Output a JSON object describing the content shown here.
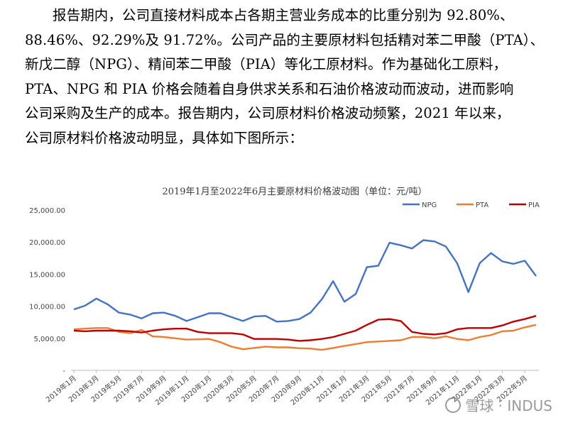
{
  "paragraph": {
    "lines": [
      "报告期内，公司直接材料成本占各期主营业务成本的比重分别为 92.80%、",
      "88.46%、92.29%及 91.72%。公司产品的主要原材料包括精对苯二甲酸（PTA）、",
      "新戊二醇（NPG）、精间苯二甲酸（PIA）等化工原材料。作为基础化工原料，",
      "PTA、NPG 和 PIA 价格会随着自身供求关系和石油价格波动而波动，进而影响",
      "公司采购及生产的成本。报告期内，公司原材料价格波动频繁，2021 年以来，",
      "公司原材料价格波动明显，具体如下图所示："
    ]
  },
  "chart_data": {
    "type": "line",
    "title": "2019年1月至2022年6月主要原材料价格波动图（单位：元/吨）",
    "y_ticks": [
      "25,000.00",
      "20,000.00",
      "15,000.00",
      "10,000.00",
      "5,000.00",
      "-"
    ],
    "ylim": [
      0,
      25000
    ],
    "grid": false,
    "legend_position": "top-right",
    "x_tick_labels": [
      "2019年1月",
      "2019年3月",
      "2019年5月",
      "2019年7月",
      "2019年9月",
      "2019年11月",
      "2020年1月",
      "2020年3月",
      "2020年5月",
      "2020年7月",
      "2020年9月",
      "2020年11月",
      "2021年1月",
      "2021年3月",
      "2021年5月",
      "2021年7月",
      "2021年9月",
      "2021年11月",
      "2022年1月",
      "2022年3月",
      "2022年5月"
    ],
    "x_count": 42,
    "series": [
      {
        "name": "NPG",
        "color": "#4472C4",
        "values": [
          9500,
          10100,
          11200,
          10300,
          9000,
          8700,
          8100,
          8900,
          9000,
          8500,
          7700,
          8300,
          8900,
          8900,
          8300,
          7700,
          8400,
          8500,
          7600,
          7700,
          8000,
          9000,
          11100,
          13900,
          10700,
          11900,
          16100,
          16300,
          19900,
          19500,
          19000,
          20300,
          20100,
          19300,
          16700,
          12200,
          16700,
          18300,
          17000,
          16600,
          17100,
          14700
        ]
      },
      {
        "name": "PTA",
        "color": "#ED7D31",
        "values": [
          6400,
          6500,
          6600,
          6600,
          6000,
          5800,
          6300,
          5300,
          5200,
          5000,
          4800,
          4850,
          4900,
          4400,
          3700,
          3300,
          3500,
          3700,
          3600,
          3600,
          3450,
          3400,
          3200,
          3500,
          3800,
          4100,
          4400,
          4500,
          4600,
          4700,
          5200,
          5200,
          5000,
          5300,
          4900,
          4700,
          5200,
          5500,
          6100,
          6200,
          6700,
          7100
        ]
      },
      {
        "name": "PIA",
        "color": "#C00000",
        "values": [
          6200,
          6100,
          6200,
          6200,
          6200,
          6100,
          5900,
          6200,
          6400,
          6500,
          6500,
          6000,
          5800,
          5800,
          5800,
          5600,
          4900,
          4900,
          4900,
          4800,
          4600,
          4700,
          4900,
          5200,
          5700,
          6200,
          7100,
          7900,
          8000,
          7700,
          6000,
          5700,
          5600,
          5800,
          6400,
          6600,
          6600,
          6600,
          7000,
          7600,
          8000,
          8500
        ]
      }
    ]
  },
  "watermark": {
    "text": "雪球 · INDUS"
  }
}
